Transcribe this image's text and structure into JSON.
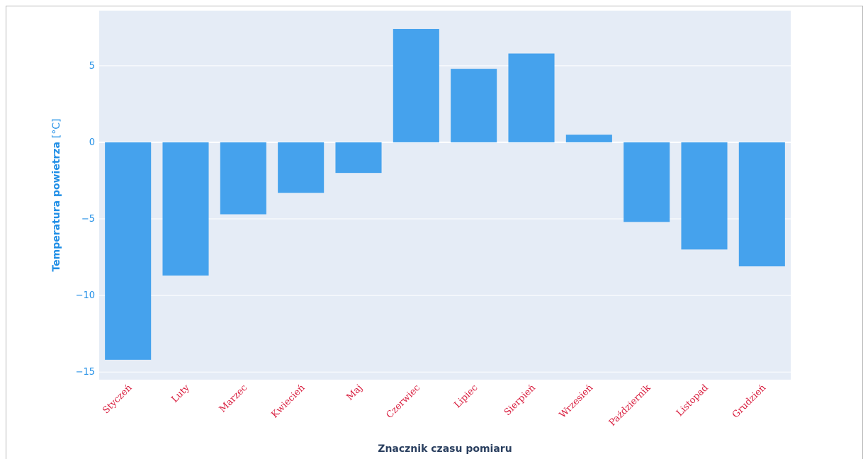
{
  "chart_data": {
    "type": "bar",
    "categories": [
      "Styczeń",
      "Luty",
      "Marzec",
      "Kwiecień",
      "Maj",
      "Czerwiec",
      "Lipiec",
      "Sierpień",
      "Wrzesień",
      "Październik",
      "Listopad",
      "Grudzień"
    ],
    "values": [
      -14.2,
      -8.7,
      -4.7,
      -3.3,
      -2.0,
      7.4,
      4.8,
      5.8,
      0.5,
      -5.2,
      -7.0,
      -8.1
    ],
    "title": "",
    "xlabel": "Znacznik czasu pomiaru",
    "ylabel": "Temperatura powietrza",
    "ylabel_unit": "[°C]",
    "ylim": [
      -15.5,
      8.6
    ],
    "yticks": [
      5,
      0,
      -5,
      -10,
      -15
    ],
    "ytick_labels": [
      "5",
      "0",
      "−5",
      "−10",
      "−15"
    ],
    "grid": true,
    "colors": {
      "bar": "#45a2ed",
      "plot_background": "#e5ecf6",
      "grid": "#ffffff",
      "y_tick": "#1f8ee6",
      "x_tick": "#d81b3c",
      "xlabel": "#2a3f5f"
    }
  }
}
